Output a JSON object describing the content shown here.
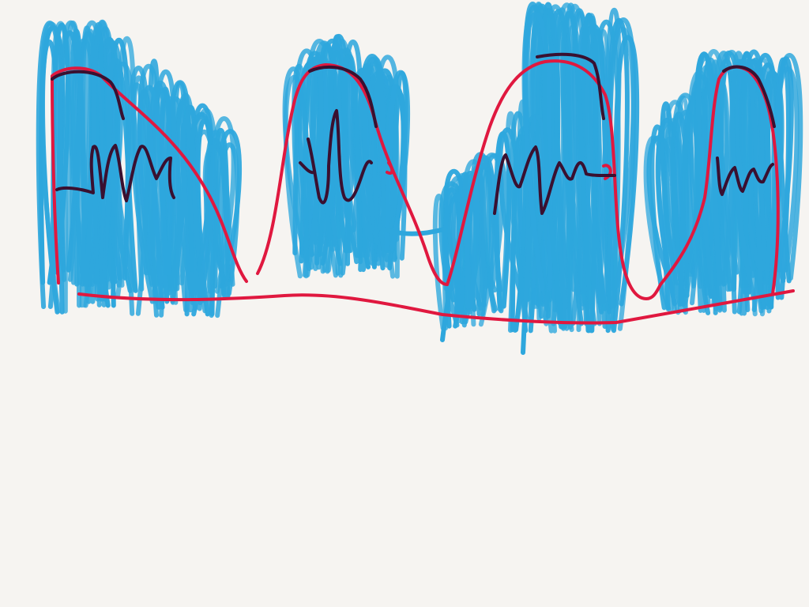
{
  "drawing": {
    "colors": {
      "background": "#f6f4f1",
      "blue_scribble": "#2ea7dd",
      "red_outline": "#e0183f",
      "dark_outline": "#3a1030"
    },
    "shapes": [
      "hump-1",
      "hump-2",
      "hump-3",
      "hump-4",
      "ground-line"
    ]
  }
}
